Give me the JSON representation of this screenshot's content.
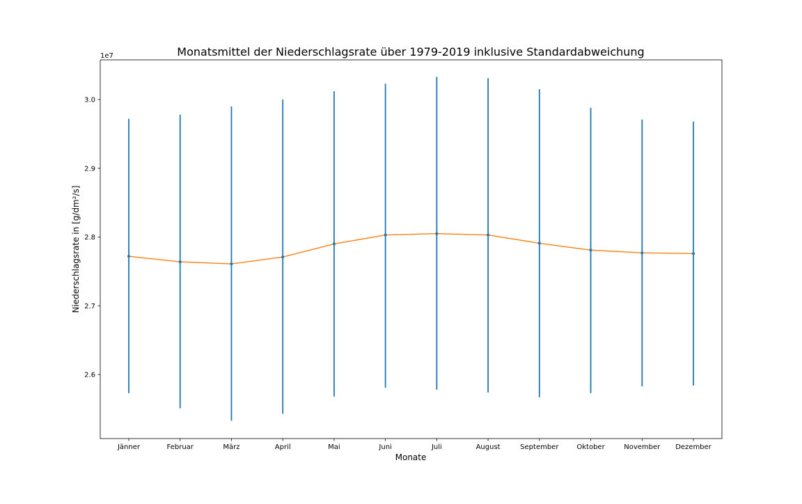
{
  "chart_data": {
    "type": "line",
    "title": "Monatsmittel der Niederschlagsrate über 1979-2019 inklusive Standardabweichung",
    "xlabel": "Monate",
    "ylabel": "Niederschlagsrate in [g/dm²/s]",
    "offset_label": "1e7",
    "categories": [
      "Jänner",
      "Februar",
      "März",
      "April",
      "Mai",
      "Juni",
      "Juli",
      "August",
      "September",
      "Oktober",
      "November",
      "Dezember"
    ],
    "ylim": [
      2.5069,
      3.0577
    ],
    "yticks": [
      2.6,
      2.7,
      2.8,
      2.9,
      3.0
    ],
    "ytick_labels": [
      "2.6",
      "2.7",
      "2.8",
      "2.9",
      "3.0"
    ],
    "grid": false,
    "series": [
      {
        "color": "#1f77b4",
        "kind": "errorbar",
        "values": [
          2.772,
          2.764,
          2.761,
          2.771,
          2.79,
          2.803,
          2.805,
          2.803,
          2.791,
          2.781,
          2.777,
          2.776
        ],
        "low": [
          2.573,
          2.551,
          2.533,
          2.543,
          2.568,
          2.581,
          2.578,
          2.574,
          2.567,
          2.573,
          2.583,
          2.584
        ],
        "high": [
          2.972,
          2.978,
          2.99,
          3.0,
          3.012,
          3.023,
          3.033,
          3.031,
          3.015,
          2.988,
          2.971,
          2.968
        ]
      },
      {
        "color": "#ff7f0e",
        "kind": "line",
        "values": [
          2.772,
          2.764,
          2.761,
          2.771,
          2.79,
          2.803,
          2.805,
          2.803,
          2.791,
          2.781,
          2.777,
          2.776
        ]
      }
    ]
  }
}
